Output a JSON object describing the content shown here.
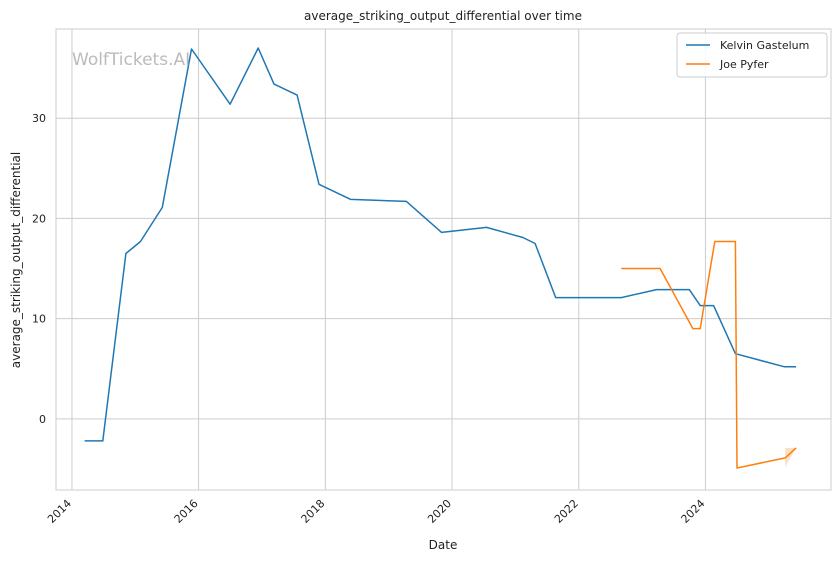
{
  "chart_data": {
    "type": "line",
    "title": "average_striking_output_differential over time",
    "xlabel": "Date",
    "ylabel": "average_striking_output_differential",
    "watermark": "WolfTickets.AI",
    "x_ticks": [
      "2014",
      "2016",
      "2018",
      "2020",
      "2022",
      "2024"
    ],
    "y_ticks": [
      0,
      10,
      20,
      30
    ],
    "xlim": [
      "2013-10-01",
      "2025-12-25"
    ],
    "ylim": [
      -7.1,
      38.9
    ],
    "grid": true,
    "legend_position": "top-right",
    "series": [
      {
        "name": "Kelvin Gastelum",
        "color": "#1f77b4",
        "points": [
          [
            "2014-03-15",
            -2.2
          ],
          [
            "2014-06-28",
            -2.2
          ],
          [
            "2014-11-08",
            16.5
          ],
          [
            "2015-01-31",
            17.7
          ],
          [
            "2015-06-06",
            21.1
          ],
          [
            "2015-11-21",
            36.9
          ],
          [
            "2016-07-01",
            31.4
          ],
          [
            "2016-12-10",
            37.0
          ],
          [
            "2017-03-11",
            33.4
          ],
          [
            "2017-07-22",
            32.3
          ],
          [
            "2017-11-25",
            23.4
          ],
          [
            "2018-05-27",
            21.9
          ],
          [
            "2019-04-13",
            21.7
          ],
          [
            "2019-11-02",
            18.6
          ],
          [
            "2020-07-18",
            19.1
          ],
          [
            "2021-02-13",
            18.1
          ],
          [
            "2021-04-24",
            17.5
          ],
          [
            "2021-08-21",
            12.1
          ],
          [
            "2022-09-03",
            12.1
          ],
          [
            "2023-03-25",
            12.9
          ],
          [
            "2023-09-30",
            12.9
          ],
          [
            "2023-12-02",
            11.3
          ],
          [
            "2024-02-17",
            11.3
          ],
          [
            "2024-06-22",
            6.5
          ],
          [
            "2025-03-29",
            5.2
          ],
          [
            "2025-06-07",
            5.2
          ]
        ]
      },
      {
        "name": "Joe Pyfer",
        "color": "#ff7f0e",
        "points": [
          [
            "2022-09-03",
            15.0
          ],
          [
            "2023-04-15",
            15.0
          ],
          [
            "2023-10-21",
            9.0
          ],
          [
            "2023-12-02",
            9.0
          ],
          [
            "2024-02-24",
            17.7
          ],
          [
            "2024-06-22",
            17.7
          ],
          [
            "2024-07-01",
            -4.9
          ],
          [
            "2025-04-05",
            -3.9
          ],
          [
            "2025-06-07",
            -2.9
          ]
        ],
        "band": {
          "upper": [
            [
              "2025-04-05",
              -2.9
            ],
            [
              "2025-06-07",
              -2.9
            ]
          ],
          "lower": [
            [
              "2025-04-05",
              -4.8
            ],
            [
              "2025-06-07",
              -2.9
            ]
          ]
        }
      }
    ]
  }
}
